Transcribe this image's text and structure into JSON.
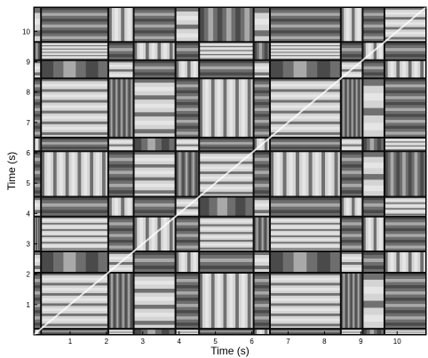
{
  "chart_data": {
    "type": "heatmap",
    "title": "",
    "xlabel": "Time (s)",
    "ylabel": "Time (s)",
    "xlim": [
      0,
      10.8
    ],
    "ylim": [
      0,
      10.8
    ],
    "x_ticks": [
      1,
      2,
      3,
      4,
      5,
      6,
      7,
      8,
      9,
      10
    ],
    "y_ticks": [
      1,
      2,
      3,
      4,
      5,
      6,
      7,
      8,
      9,
      10
    ],
    "colormap": "grayscale",
    "segment_boundaries_s": [
      0,
      0.2,
      2.05,
      2.75,
      3.9,
      4.55,
      6.05,
      6.5,
      8.45,
      9.05,
      9.65,
      10.8
    ],
    "grid": false
  }
}
